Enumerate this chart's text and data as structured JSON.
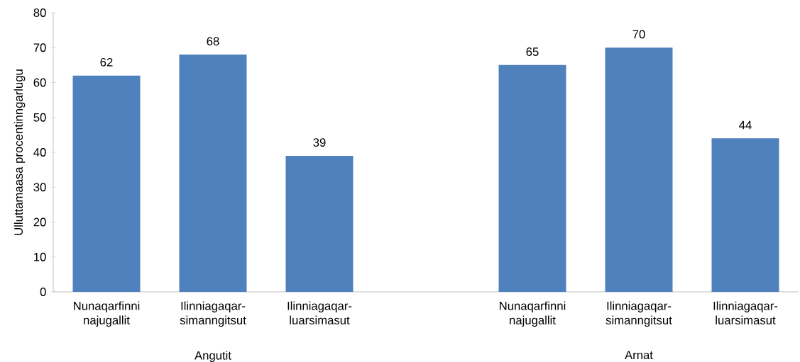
{
  "chart_data": {
    "type": "bar",
    "ylabel": "Ulluttamaasa procentinngarlugu",
    "categories": [
      "Nunaqarfinni najugallit",
      "Ilinniagaqar-simanngitsut",
      "Ilinniagaqar-luarsimasut",
      null,
      "Nunaqarfinni najugallit",
      "Ilinniagaqar-simanngitsut",
      "Ilinniagaqar-luarsimasut"
    ],
    "values": [
      62,
      68,
      39,
      null,
      65,
      70,
      44
    ],
    "color": "#4f81bd",
    "data_labels": true,
    "grid": false,
    "ylim": [
      0,
      80
    ],
    "yticks": [
      0,
      10,
      20,
      30,
      40,
      50,
      60,
      70,
      80
    ],
    "annotations": [
      "Angutit",
      "Arnat"
    ]
  }
}
